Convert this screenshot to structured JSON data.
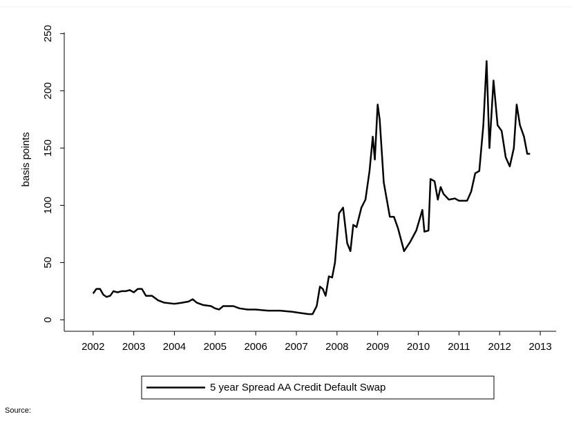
{
  "chart_data": {
    "type": "line",
    "y_label": "basis points",
    "note": "Source:",
    "legend": "bottom",
    "x": [
      2002.0,
      2002.08,
      2002.17,
      2002.25,
      2002.33,
      2002.42,
      2002.5,
      2002.6,
      2002.7,
      2002.8,
      2002.9,
      2003.0,
      2003.1,
      2003.2,
      2003.3,
      2003.45,
      2003.6,
      2003.75,
      2004.0,
      2004.2,
      2004.35,
      2004.45,
      2004.55,
      2004.7,
      2004.9,
      2005.0,
      2005.1,
      2005.2,
      2005.45,
      2005.6,
      2005.8,
      2006.0,
      2006.3,
      2006.6,
      2006.9,
      2007.1,
      2007.3,
      2007.4,
      2007.5,
      2007.58,
      2007.65,
      2007.72,
      2007.8,
      2007.88,
      2007.95,
      2008.05,
      2008.15,
      2008.25,
      2008.33,
      2008.4,
      2008.48,
      2008.6,
      2008.7,
      2008.8,
      2008.88,
      2008.93,
      2009.0,
      2009.05,
      2009.15,
      2009.3,
      2009.4,
      2009.5,
      2009.65,
      2009.8,
      2009.95,
      2010.05,
      2010.1,
      2010.15,
      2010.25,
      2010.3,
      2010.4,
      2010.48,
      2010.55,
      2010.62,
      2010.75,
      2010.9,
      2011.0,
      2011.2,
      2011.3,
      2011.4,
      2011.5,
      2011.6,
      2011.68,
      2011.75,
      2011.85,
      2011.95,
      2012.05,
      2012.15,
      2012.25,
      2012.35,
      2012.42,
      2012.5,
      2012.6,
      2012.68,
      2012.75
    ],
    "series": [
      {
        "name": "5 year Spread AA Credit Default Swap",
        "color": "#000000",
        "values": [
          23,
          27,
          27,
          22,
          20,
          21,
          25,
          24,
          25,
          25,
          26,
          24,
          27,
          27,
          21,
          21,
          17,
          15,
          14,
          15,
          16,
          18,
          15,
          13,
          12,
          10,
          9,
          12,
          12,
          10,
          9,
          9,
          8,
          8,
          7,
          6,
          5,
          5,
          12,
          29,
          27,
          21,
          38,
          37,
          50,
          93,
          98,
          67,
          60,
          83,
          81,
          98,
          105,
          130,
          160,
          140,
          188,
          175,
          120,
          90,
          90,
          80,
          60,
          68,
          78,
          90,
          96,
          77,
          78,
          123,
          121,
          105,
          116,
          110,
          105,
          106,
          104,
          104,
          112,
          128,
          130,
          170,
          226,
          150,
          209,
          170,
          165,
          142,
          134,
          150,
          188,
          170,
          160,
          145,
          145
        ]
      }
    ],
    "xlim": [
      2001.29,
      2013.39
    ],
    "xticks": [
      2002,
      2003,
      2004,
      2005,
      2006,
      2007,
      2008,
      2009,
      2010,
      2011,
      2012,
      2013
    ],
    "ylim": [
      -10,
      251
    ],
    "yticks": [
      0,
      50,
      100,
      150,
      200,
      250
    ]
  }
}
